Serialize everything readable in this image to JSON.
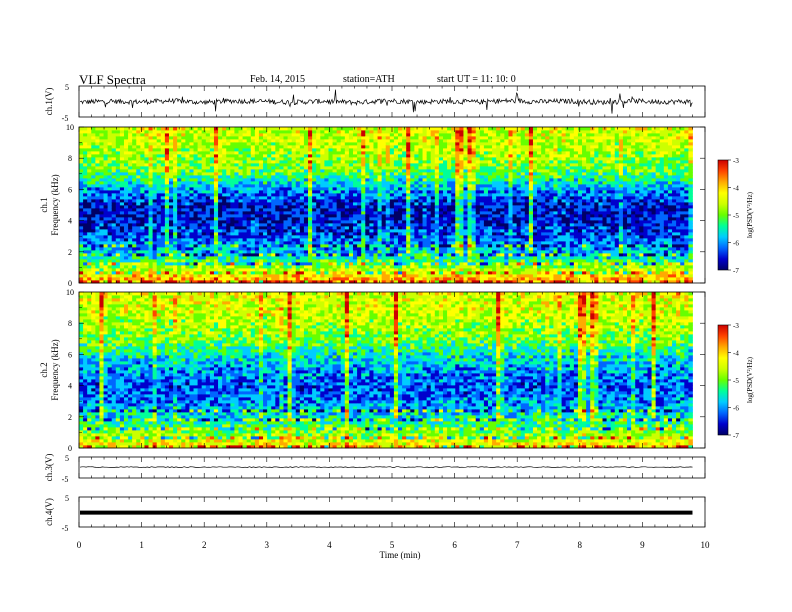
{
  "header": {
    "title": "VLF  Spectra",
    "date": "Feb. 14, 2015",
    "station": "station=ATH",
    "start": "start  UT  =   11: 10: 0"
  },
  "chart_data": [
    {
      "type": "line",
      "panel": "ch1-waveform",
      "ylabel": "ch.1(V)",
      "ylim": [
        -5,
        5
      ],
      "yticks": [
        "5",
        "-5"
      ],
      "xlim": [
        0,
        10
      ],
      "color": "#000000",
      "x": [
        0,
        0.5,
        1,
        1.5,
        2,
        2.5,
        3,
        3.5,
        4,
        4.5,
        5,
        5.5,
        6,
        6.5,
        7,
        7.5,
        8,
        8.5,
        9,
        9.5,
        9.8
      ],
      "y": [
        -0.3,
        0.1,
        -0.2,
        0.4,
        -0.5,
        0.3,
        0.0,
        -0.4,
        0.2,
        -0.6,
        0.5,
        -0.2,
        0.1,
        -0.3,
        0.4,
        -0.1,
        0.2,
        -0.5,
        0.3,
        -0.2,
        0.0
      ]
    },
    {
      "type": "heatmap",
      "panel": "ch1-spectrogram",
      "ylabel": "ch.1\nFrequency  (kHz)",
      "ylim": [
        0,
        10
      ],
      "yticks": [
        "0",
        "2",
        "4",
        "6",
        "8",
        "10"
      ],
      "xlim": [
        0,
        9.8
      ],
      "colorbar": {
        "label": "log(PSD(V²/Hz)",
        "range": [
          -7,
          -3
        ],
        "ticks": [
          "-3",
          "-4",
          "-5",
          "-6",
          "-7"
        ]
      },
      "freq_khz": [
        0,
        1,
        2,
        3,
        4,
        5,
        6,
        7,
        8,
        9,
        10
      ],
      "mean_log_psd": [
        -3.5,
        -4.8,
        -5.9,
        -6.3,
        -6.6,
        -6.6,
        -6.0,
        -5.2,
        -4.8,
        -4.6,
        -4.5
      ]
    },
    {
      "type": "heatmap",
      "panel": "ch2-spectrogram",
      "ylabel": "ch.2\nFrequency  (kHz)",
      "ylim": [
        0,
        10
      ],
      "yticks": [
        "0",
        "2",
        "4",
        "6",
        "8",
        "10"
      ],
      "xlim": [
        0,
        9.8
      ],
      "colorbar": {
        "label": "log(PSD(V²/Hz)",
        "range": [
          -7,
          -3
        ],
        "ticks": [
          "-3",
          "-4",
          "-5",
          "-6",
          "-7"
        ]
      },
      "freq_khz": [
        0,
        1,
        2,
        3,
        4,
        5,
        6,
        7,
        8,
        9,
        10
      ],
      "mean_log_psd": [
        -4.0,
        -4.9,
        -5.6,
        -6.1,
        -6.3,
        -6.0,
        -5.6,
        -5.0,
        -4.7,
        -4.5,
        -4.4
      ]
    },
    {
      "type": "line",
      "panel": "ch3-waveform",
      "ylabel": "ch.3(V)",
      "ylim": [
        -5,
        5
      ],
      "yticks": [
        "5",
        "-5"
      ],
      "xlim": [
        0,
        10
      ],
      "color": "#000000",
      "x": [
        0,
        2,
        4,
        6,
        8,
        9.8
      ],
      "y": [
        0.2,
        0.2,
        0.2,
        0.2,
        0.2,
        0.2
      ]
    },
    {
      "type": "line",
      "panel": "ch4-waveform",
      "ylabel": "ch.4(V)",
      "ylim": [
        -5,
        5
      ],
      "yticks": [
        "5",
        "-5"
      ],
      "xlim": [
        0,
        10
      ],
      "color": "#000000",
      "x": [
        0,
        2,
        4,
        6,
        8,
        9.8
      ],
      "y": [
        -0.2,
        -0.2,
        -0.2,
        -0.2,
        -0.2,
        -0.2
      ]
    }
  ],
  "xaxis": {
    "label": "Time  (min)",
    "ticks": [
      "0",
      "1",
      "2",
      "3",
      "4",
      "5",
      "6",
      "7",
      "8",
      "9",
      "10"
    ]
  },
  "colors": {
    "colormap": [
      "#000066",
      "#0000cc",
      "#0066ff",
      "#00ccff",
      "#00ff99",
      "#66ff00",
      "#ccff00",
      "#ffff00",
      "#ffaa00",
      "#ff4400",
      "#cc0000"
    ]
  }
}
